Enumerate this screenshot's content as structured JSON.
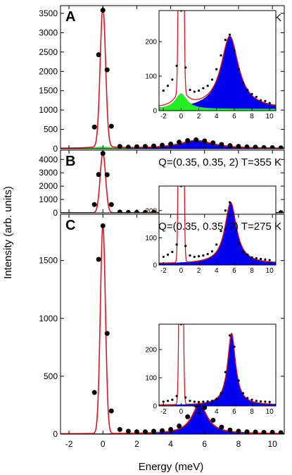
{
  "figure": {
    "xlabel": "Energy (meV)",
    "ylabel": "Intensity (arb. units)",
    "x_ticks": [
      "-2",
      "0",
      "2",
      "4",
      "6",
      "8",
      "10"
    ],
    "colors": {
      "fit": "#e0141e",
      "magnon": "#0000ee",
      "quasielastic": "#22ee22",
      "data": "#000000"
    }
  },
  "chart_data": [
    {
      "type": "scatter",
      "panel": "A",
      "annotation": "Q=(0.35, 0.35, 2)  T=450 K",
      "xlim": [
        -2.5,
        10.7
      ],
      "ylim": [
        0,
        3700
      ],
      "y_ticks": [
        "0",
        "500",
        "1000",
        "1500",
        "2000",
        "2500",
        "3000",
        "3500"
      ],
      "points_x": [
        -0.5,
        -0.25,
        0,
        0.25,
        0.5,
        1,
        1.5,
        2,
        2.5,
        3,
        3.5,
        4,
        4.5,
        5,
        5.5,
        6,
        6.5,
        7,
        7.5,
        8,
        8.5,
        9,
        9.5,
        10,
        10.5
      ],
      "points_y": [
        560,
        2430,
        3580,
        2040,
        580,
        60,
        40,
        50,
        60,
        70,
        90,
        120,
        170,
        210,
        230,
        200,
        150,
        110,
        80,
        60,
        45,
        40,
        30,
        25,
        20
      ],
      "elastic": {
        "center": 0,
        "sigma": 0.16,
        "amplitude": 3600
      },
      "magnon": {
        "center": 5.5,
        "gamma": 1.2,
        "amplitude": 210
      },
      "quasielastic": {
        "center": 0,
        "gamma": 0.8,
        "amplitude": 45
      },
      "background": 5,
      "inset": {
        "xlim": [
          -2.5,
          10.7
        ],
        "ylim": [
          0,
          290
        ],
        "x_ticks": [
          "-2",
          "0",
          "2",
          "4",
          "6",
          "8",
          "10"
        ],
        "y_ticks": [
          "0",
          "100",
          "200"
        ],
        "points_x": [
          -2,
          -1.5,
          -1,
          -0.5,
          0,
          0.5,
          1,
          1.5,
          2,
          2.5,
          3,
          3.5,
          4,
          4.5,
          5,
          5.5,
          6,
          6.5,
          7,
          7.5,
          8,
          8.5,
          9,
          9.5,
          10
        ],
        "points_y": [
          58,
          72,
          90,
          130,
          290,
          125,
          60,
          55,
          58,
          65,
          72,
          90,
          120,
          160,
          205,
          220,
          175,
          120,
          80,
          60,
          48,
          40,
          30,
          28,
          22
        ]
      }
    },
    {
      "type": "scatter",
      "panel": "B",
      "annotation": "Q=(0.35, 0.35, 2)  T=355 K",
      "xlim": [
        -2.5,
        10.7
      ],
      "ylim": [
        0,
        4700
      ],
      "y_ticks": [
        "0",
        "1000",
        "2000",
        "3000",
        "4000"
      ],
      "points_x": [
        -0.5,
        -0.25,
        0,
        0.25,
        0.5,
        1,
        1.5,
        2,
        2.5,
        3,
        3.5,
        4,
        4.5,
        5,
        5.5,
        6,
        6.5,
        7,
        7.5,
        8,
        8.5,
        9,
        9.5,
        10,
        10.5
      ],
      "points_y": [
        620,
        2870,
        4450,
        2850,
        620,
        60,
        30,
        30,
        35,
        40,
        50,
        70,
        110,
        170,
        220,
        190,
        110,
        60,
        40,
        30,
        25,
        20,
        20,
        15,
        15
      ],
      "elastic": {
        "center": 0,
        "sigma": 0.16,
        "amplitude": 4500
      },
      "magnon": {
        "center": 5.6,
        "gamma": 0.8,
        "amplitude": 225
      },
      "background": 5,
      "inset": {
        "xlim": [
          -2.5,
          10.7
        ],
        "ylim": [
          0,
          290
        ],
        "x_ticks": [
          "-2",
          "0",
          "2",
          "4",
          "6",
          "8",
          "10"
        ],
        "y_ticks": [
          "0",
          "100",
          "200"
        ],
        "points_x": [
          -2,
          -1.5,
          -1,
          -0.5,
          0,
          0.5,
          1,
          1.5,
          2,
          2.5,
          3,
          3.5,
          4,
          4.5,
          5,
          5.5,
          6,
          6.5,
          7,
          7.5,
          8,
          8.5,
          9,
          9.5,
          10
        ],
        "points_y": [
          30,
          38,
          48,
          75,
          290,
          70,
          35,
          30,
          32,
          35,
          40,
          50,
          75,
          125,
          200,
          230,
          150,
          80,
          48,
          38,
          28,
          25,
          22,
          20,
          18
        ]
      }
    },
    {
      "type": "scatter",
      "panel": "C",
      "annotation": "Q=(0.35, 0.35, 2)  T=275 K",
      "xlim": [
        -2.5,
        10.7
      ],
      "ylim": [
        0,
        1900
      ],
      "y_ticks": [
        "0",
        "500",
        "1000",
        "1500"
      ],
      "points_x": [
        -0.5,
        -0.25,
        0,
        0.25,
        0.5,
        1,
        1.5,
        2,
        2.5,
        3,
        3.5,
        4,
        4.5,
        5,
        5.5,
        6,
        6.5,
        7,
        7.5,
        8,
        8.5,
        9,
        9.5,
        10,
        10.5
      ],
      "points_y": [
        360,
        1510,
        1800,
        870,
        200,
        40,
        25,
        20,
        20,
        25,
        30,
        40,
        70,
        150,
        250,
        230,
        120,
        60,
        35,
        25,
        20,
        18,
        15,
        15,
        12
      ],
      "elastic": {
        "center": 0,
        "sigma": 0.15,
        "amplitude": 1800
      },
      "magnon": {
        "center": 5.7,
        "gamma": 0.55,
        "amplitude": 255
      },
      "background": 3,
      "inset": {
        "xlim": [
          -2.5,
          10.7
        ],
        "ylim": [
          0,
          290
        ],
        "x_ticks": [
          "-2",
          "0",
          "2",
          "4",
          "6",
          "8",
          "10"
        ],
        "y_ticks": [
          "0",
          "100",
          "200"
        ],
        "points_x": [
          -2,
          -1.5,
          -1,
          -0.5,
          0,
          0.5,
          1,
          1.5,
          2,
          2.5,
          3,
          3.5,
          4,
          4.5,
          5,
          5.5,
          6,
          6.5,
          7,
          7.5,
          8,
          8.5,
          9,
          9.5,
          10
        ],
        "points_y": [
          15,
          18,
          22,
          35,
          290,
          30,
          18,
          15,
          14,
          15,
          16,
          18,
          25,
          45,
          120,
          250,
          210,
          90,
          45,
          28,
          22,
          18,
          16,
          15,
          14
        ]
      }
    }
  ]
}
